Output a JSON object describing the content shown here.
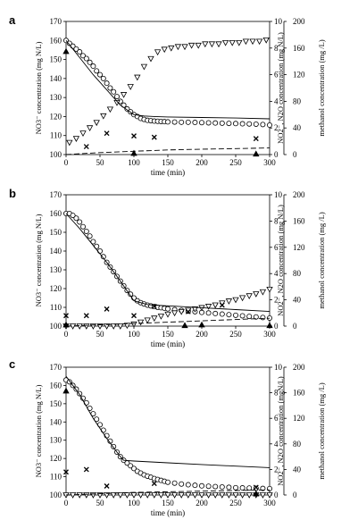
{
  "chart_data": [
    {
      "type": "scatter",
      "panel": "a",
      "xlabel": "time (min)",
      "ylabel_left": "NO3⁻ concentration (mg N/L)",
      "ylabel_right": "NO2⁻, N2O concentration (mg N/L)",
      "ylabel_methanol": "methanol concentration (mg /L)",
      "xlim": [
        0,
        300
      ],
      "ylim_left": [
        100,
        170
      ],
      "ylim_right": [
        0,
        10
      ],
      "ylim_methanol": [
        0,
        200
      ],
      "x_ticks": [
        0,
        50,
        100,
        150,
        200,
        250,
        300
      ],
      "y_left_ticks": [
        100,
        110,
        120,
        130,
        140,
        150,
        160,
        170
      ],
      "y_right_ticks": [
        0,
        2,
        4,
        6,
        8,
        10
      ],
      "y_methanol_ticks": [
        0,
        40,
        80,
        120,
        160,
        200
      ],
      "series": [
        {
          "marker": "circle",
          "axis": "left",
          "x": [
            0,
            5,
            10,
            15,
            20,
            25,
            30,
            35,
            40,
            45,
            50,
            55,
            60,
            65,
            70,
            75,
            80,
            85,
            90,
            95,
            100,
            105,
            110,
            115,
            120,
            125,
            130,
            135,
            140,
            145,
            150,
            160,
            170,
            180,
            190,
            200,
            210,
            220,
            230,
            240,
            250,
            260,
            270,
            280,
            290,
            300
          ],
          "y": [
            160,
            158.5,
            157,
            155.5,
            154,
            152,
            150.5,
            148.5,
            146.5,
            144,
            142,
            140,
            137.5,
            135,
            133,
            130.5,
            128,
            126,
            124,
            122.5,
            121,
            120,
            119,
            118.5,
            118,
            117.8,
            117.6,
            117.5,
            117.4,
            117.3,
            117.2,
            117.1,
            117,
            117,
            116.9,
            116.8,
            116.7,
            116.6,
            116.5,
            116.4,
            116.3,
            116.2,
            116.1,
            116,
            115.8,
            115.5
          ]
        },
        {
          "marker": "triangle-down",
          "axis": "right",
          "x": [
            5,
            15,
            25,
            35,
            45,
            55,
            65,
            75,
            85,
            95,
            105,
            115,
            125,
            135,
            145,
            155,
            165,
            175,
            185,
            195,
            205,
            215,
            225,
            235,
            245,
            255,
            265,
            275,
            285,
            295
          ],
          "y": [
            0.9,
            1.2,
            1.6,
            2.0,
            2.4,
            2.9,
            3.4,
            3.9,
            4.5,
            5.1,
            5.8,
            6.6,
            7.2,
            7.7,
            7.9,
            8.0,
            8.1,
            8.1,
            8.2,
            8.2,
            8.3,
            8.3,
            8.3,
            8.4,
            8.4,
            8.4,
            8.5,
            8.5,
            8.5,
            8.6
          ]
        },
        {
          "marker": "cross",
          "axis": "right",
          "x": [
            30,
            60,
            100,
            130,
            280
          ],
          "y": [
            0.6,
            1.6,
            1.4,
            1.3,
            1.2
          ]
        },
        {
          "marker": "triangle",
          "axis": "methanol",
          "x": [
            0,
            100,
            280
          ],
          "y": [
            155,
            2,
            1
          ]
        },
        {
          "marker": "none",
          "style": "solid",
          "axis": "left",
          "x": [
            0,
            20,
            40,
            60,
            80,
            100,
            115,
            130,
            150,
            200,
            250,
            300
          ],
          "y": [
            160,
            151,
            142,
            134,
            126,
            121,
            120.3,
            120,
            119.8,
            119.5,
            119.2,
            118.8
          ]
        },
        {
          "marker": "none",
          "style": "dashed",
          "axis": "right",
          "x": [
            0,
            50,
            100,
            150,
            200,
            250,
            300
          ],
          "y": [
            0,
            0.15,
            0.25,
            0.35,
            0.4,
            0.45,
            0.5
          ]
        }
      ]
    },
    {
      "type": "scatter",
      "panel": "b",
      "xlabel": "time (min)",
      "ylabel_left": "NO3⁻ concentration (mg N/L)",
      "ylabel_right": "NO2⁻, N2O concentration (mg N/L)",
      "ylabel_methanol": "methanol concentration (mg /L)",
      "xlim": [
        0,
        300
      ],
      "ylim_left": [
        100,
        170
      ],
      "ylim_right": [
        0,
        10
      ],
      "ylim_methanol": [
        0,
        200
      ],
      "x_ticks": [
        0,
        50,
        100,
        150,
        200,
        250,
        300
      ],
      "y_left_ticks": [
        100,
        110,
        120,
        130,
        140,
        150,
        160,
        170
      ],
      "y_right_ticks": [
        0,
        2,
        4,
        6,
        8,
        10
      ],
      "y_methanol_ticks": [
        0,
        40,
        80,
        120,
        160,
        200
      ],
      "series": [
        {
          "marker": "circle",
          "axis": "left",
          "x": [
            0,
            5,
            10,
            15,
            20,
            25,
            30,
            35,
            40,
            45,
            50,
            55,
            60,
            65,
            70,
            75,
            80,
            85,
            90,
            95,
            100,
            105,
            110,
            115,
            120,
            125,
            130,
            135,
            140,
            145,
            150,
            160,
            170,
            180,
            190,
            200,
            210,
            220,
            230,
            240,
            250,
            260,
            270,
            280,
            290,
            300
          ],
          "y": [
            160,
            160,
            159,
            157.5,
            155.5,
            153,
            150.5,
            148,
            145,
            142.5,
            140,
            137,
            134,
            131.5,
            129,
            126.5,
            124,
            121.5,
            119,
            117,
            115,
            113.5,
            112.5,
            111.8,
            111.2,
            110.8,
            110.4,
            110,
            109.8,
            109.5,
            109.2,
            108.8,
            108.4,
            108,
            107.7,
            107.3,
            107,
            106.7,
            106.4,
            106.1,
            105.8,
            105.5,
            105.2,
            104.9,
            104.6,
            104.3
          ]
        },
        {
          "marker": "triangle-down",
          "axis": "right",
          "x": [
            0,
            10,
            20,
            30,
            40,
            50,
            60,
            70,
            80,
            90,
            100,
            110,
            120,
            130,
            140,
            150,
            160,
            170,
            180,
            190,
            200,
            210,
            220,
            230,
            240,
            250,
            260,
            270,
            280,
            290,
            300
          ],
          "y": [
            0,
            0,
            0,
            0,
            0,
            0,
            0,
            0,
            0,
            0.05,
            0.15,
            0.3,
            0.45,
            0.6,
            0.75,
            0.9,
            1.0,
            1.1,
            1.2,
            1.3,
            1.4,
            1.5,
            1.6,
            1.75,
            1.9,
            2.0,
            2.15,
            2.3,
            2.45,
            2.6,
            2.8
          ]
        },
        {
          "marker": "cross",
          "axis": "right",
          "x": [
            0,
            30,
            60,
            100,
            130,
            180,
            230
          ],
          "y": [
            0.8,
            0.8,
            1.3,
            0.8,
            1.5,
            1.1,
            1.6
          ]
        },
        {
          "marker": "triangle",
          "axis": "methanol",
          "x": [
            0,
            175,
            200,
            300
          ],
          "y": [
            2,
            1,
            2,
            1
          ]
        },
        {
          "marker": "none",
          "style": "solid",
          "axis": "left",
          "x": [
            0,
            20,
            40,
            60,
            80,
            100,
            120,
            140,
            160,
            180,
            200,
            250,
            300
          ],
          "y": [
            160,
            152,
            143,
            134,
            124,
            113.5,
            111.5,
            111,
            110.6,
            110.2,
            109.8,
            108.8,
            107.8
          ]
        },
        {
          "marker": "none",
          "style": "dashed",
          "axis": "right",
          "x": [
            0,
            50,
            100,
            150,
            200,
            250,
            300
          ],
          "y": [
            0,
            0.1,
            0.2,
            0.3,
            0.4,
            0.5,
            0.6
          ]
        }
      ]
    },
    {
      "type": "scatter",
      "panel": "c",
      "xlabel": "time (min)",
      "ylabel_left": "NO3⁻ concentration (mg N/L)",
      "ylabel_right": "NO2⁻, N2O concentration (mgN/L)",
      "ylabel_methanol": "methanol concentration (mg /L)",
      "xlim": [
        0,
        300
      ],
      "ylim_left": [
        100,
        170
      ],
      "ylim_right": [
        0,
        10
      ],
      "ylim_methanol": [
        0,
        200
      ],
      "x_ticks": [
        0,
        50,
        100,
        150,
        200,
        250,
        300
      ],
      "y_left_ticks": [
        100,
        110,
        120,
        130,
        140,
        150,
        160,
        170
      ],
      "y_right_ticks": [
        0,
        2,
        4,
        6,
        8,
        10
      ],
      "y_methanol_ticks": [
        0,
        40,
        80,
        120,
        160,
        200
      ],
      "series": [
        {
          "marker": "circle",
          "axis": "left",
          "x": [
            0,
            5,
            10,
            15,
            20,
            25,
            30,
            35,
            40,
            45,
            50,
            55,
            60,
            65,
            70,
            75,
            80,
            85,
            90,
            95,
            100,
            105,
            110,
            115,
            120,
            125,
            130,
            135,
            140,
            145,
            150,
            160,
            170,
            180,
            190,
            200,
            210,
            220,
            230,
            240,
            250,
            260,
            270,
            280,
            290,
            300
          ],
          "y": [
            163,
            162,
            160,
            158,
            155.5,
            153,
            150.5,
            147.5,
            144.5,
            141.5,
            138.5,
            135.5,
            132.5,
            129.5,
            126.5,
            123.5,
            121,
            119,
            117.5,
            116,
            114.5,
            113,
            112,
            111,
            110.3,
            109.7,
            109,
            108.5,
            108,
            107.5,
            107,
            106.5,
            106,
            105.6,
            105.3,
            105,
            104.8,
            104.6,
            104.4,
            104.2,
            104,
            103.9,
            103.8,
            103.7,
            103.6,
            103.5
          ]
        },
        {
          "marker": "triangle-down",
          "axis": "right",
          "x": [
            0,
            10,
            20,
            30,
            40,
            50,
            60,
            70,
            80,
            90,
            100,
            110,
            120,
            130,
            140,
            150,
            160,
            170,
            180,
            190,
            200,
            210,
            220,
            230,
            240,
            250,
            260,
            270,
            280,
            290,
            300
          ],
          "y": [
            0,
            0,
            0,
            0,
            0,
            0,
            0,
            0,
            0,
            0,
            0,
            0,
            0,
            0,
            0,
            0,
            0,
            0,
            0,
            0,
            0,
            0,
            0,
            0,
            0,
            0,
            0,
            0,
            0,
            0,
            0
          ]
        },
        {
          "marker": "cross",
          "axis": "right",
          "x": [
            0,
            30,
            60,
            130,
            280
          ],
          "y": [
            1.8,
            2.0,
            0.7,
            0.9,
            0.6
          ]
        },
        {
          "marker": "triangle",
          "axis": "methanol",
          "x": [
            0,
            280
          ],
          "y": [
            163,
            2
          ]
        },
        {
          "marker": "none",
          "style": "solid",
          "axis": "left",
          "x": [
            0,
            20,
            40,
            60,
            80,
            85,
            100,
            150,
            200,
            250,
            300
          ],
          "y": [
            165,
            155,
            142,
            131,
            121,
            119,
            118.6,
            117.6,
            116.7,
            115.8,
            115
          ]
        },
        {
          "marker": "none",
          "style": "dashed",
          "axis": "right",
          "x": [
            0,
            50,
            100,
            150,
            200,
            250,
            300
          ],
          "y": [
            0,
            0.1,
            0.2,
            0.25,
            0.3,
            0.35,
            0.4
          ]
        }
      ]
    }
  ]
}
